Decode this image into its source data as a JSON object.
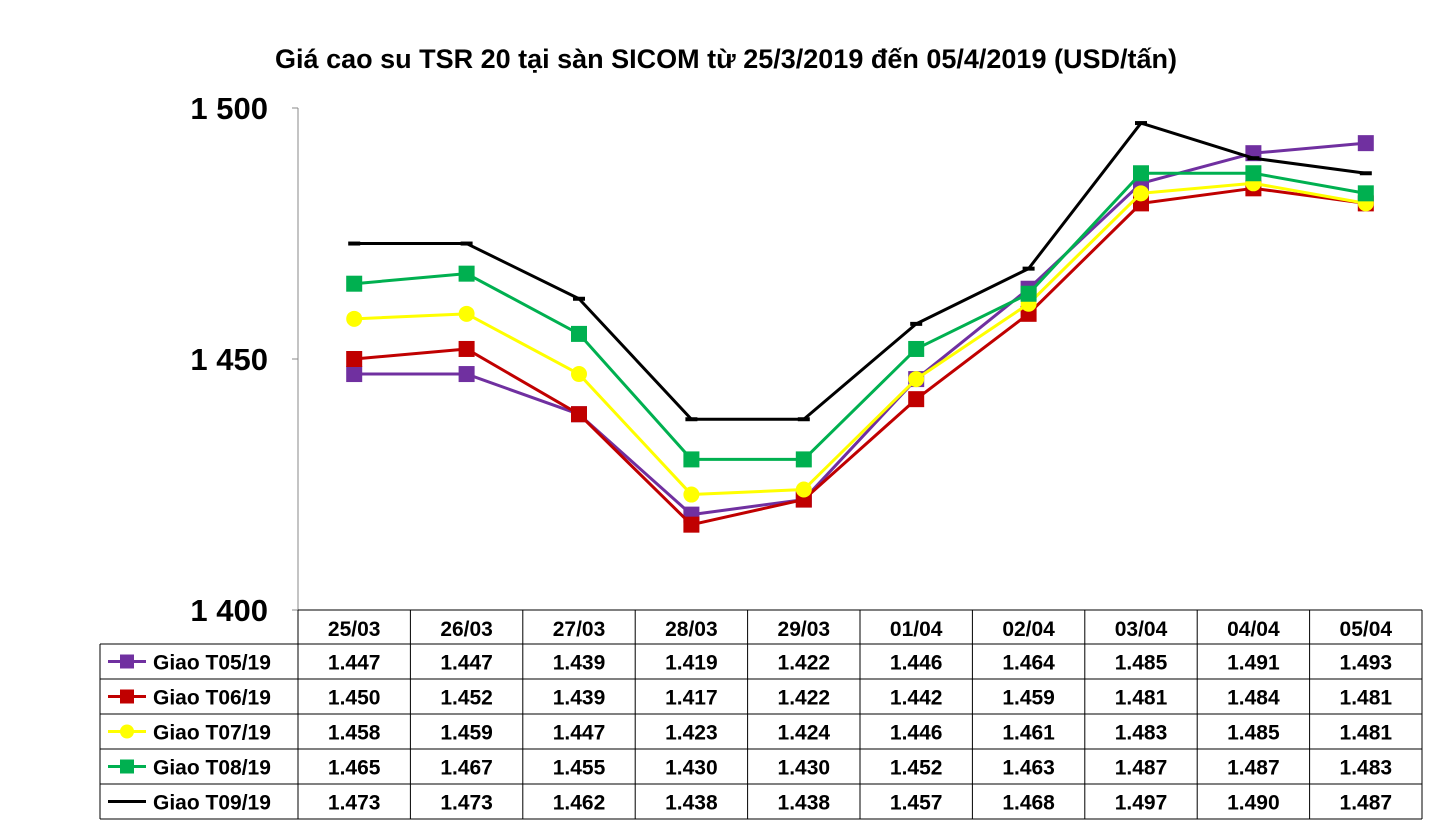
{
  "chart_data": {
    "type": "line",
    "title": "Giá cao su TSR 20 tại sàn SICOM từ 25/3/2019  đến 05/4/2019  (USD/tấn)",
    "categories": [
      "25/03",
      "26/03",
      "27/03",
      "28/03",
      "29/03",
      "01/04",
      "02/04",
      "03/04",
      "04/04",
      "05/04"
    ],
    "ylim": [
      1400,
      1500
    ],
    "yticks": [
      1400,
      1450,
      1500
    ],
    "ytick_labels": [
      "1 400",
      "1 450",
      "1 500"
    ],
    "grid": false,
    "legend": "data-table-below",
    "series": [
      {
        "name": "Giao T05/19",
        "color": "#7030A0",
        "marker": "square",
        "values": [
          1447,
          1447,
          1439,
          1419,
          1422,
          1446,
          1464,
          1485,
          1491,
          1493
        ],
        "labels": [
          "1.447",
          "1.447",
          "1.439",
          "1.419",
          "1.422",
          "1.446",
          "1.464",
          "1.485",
          "1.491",
          "1.493"
        ]
      },
      {
        "name": "Giao T06/19",
        "color": "#C00000",
        "marker": "square",
        "values": [
          1450,
          1452,
          1439,
          1417,
          1422,
          1442,
          1459,
          1481,
          1484,
          1481
        ],
        "labels": [
          "1.450",
          "1.452",
          "1.439",
          "1.417",
          "1.422",
          "1.442",
          "1.459",
          "1.481",
          "1.484",
          "1.481"
        ]
      },
      {
        "name": "Giao T07/19",
        "color": "#FFFF00",
        "marker": "circle",
        "values": [
          1458,
          1459,
          1447,
          1423,
          1424,
          1446,
          1461,
          1483,
          1485,
          1481
        ],
        "labels": [
          "1.458",
          "1.459",
          "1.447",
          "1.423",
          "1.424",
          "1.446",
          "1.461",
          "1.483",
          "1.485",
          "1.481"
        ]
      },
      {
        "name": "Giao T08/19",
        "color": "#00B050",
        "marker": "square",
        "values": [
          1465,
          1467,
          1455,
          1430,
          1430,
          1452,
          1463,
          1487,
          1487,
          1483
        ],
        "labels": [
          "1.465",
          "1.467",
          "1.455",
          "1.430",
          "1.430",
          "1.452",
          "1.463",
          "1.487",
          "1.487",
          "1.483"
        ]
      },
      {
        "name": "Giao T09/19",
        "color": "#000000",
        "marker": "dash",
        "values": [
          1473,
          1473,
          1462,
          1438,
          1438,
          1457,
          1468,
          1497,
          1490,
          1487
        ],
        "labels": [
          "1.473",
          "1.473",
          "1.462",
          "1.438",
          "1.438",
          "1.457",
          "1.468",
          "1.497",
          "1.490",
          "1.487"
        ]
      }
    ]
  }
}
